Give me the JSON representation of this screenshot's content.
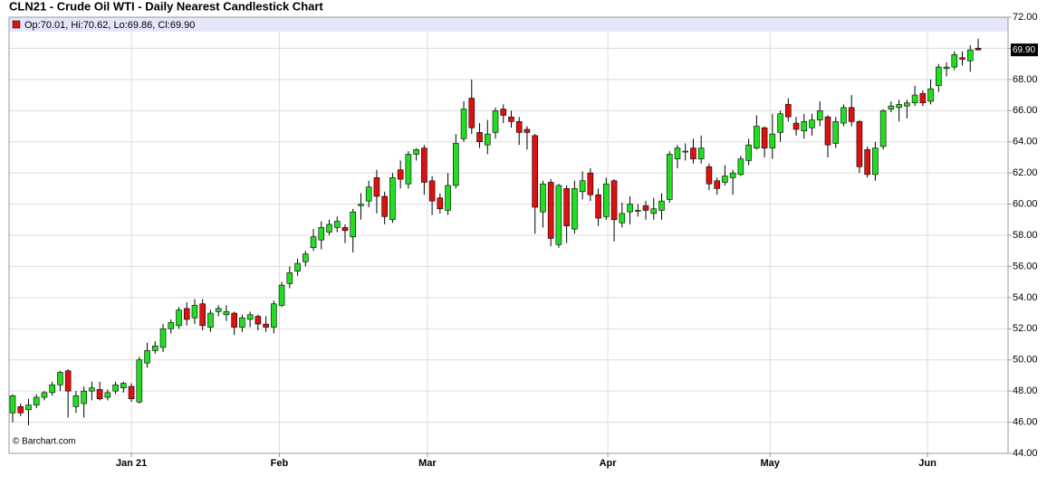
{
  "chart_data": {
    "type": "candlestick",
    "title": "CLN21 - Crude Oil WTI - Daily Nearest Candlestick Chart",
    "ohlc_label": "Op:70.01, Hi:70.62, Lo:69.86, Cl:69.90",
    "last_value_label": "69.90",
    "source": "© Barchart.com",
    "up_color": "#22dd22",
    "down_color": "#dd1111",
    "open": [
      46.6,
      47.0,
      46.8,
      47.1,
      47.6,
      47.9,
      48.4,
      49.3,
      47.0,
      47.2,
      48.0,
      48.1,
      47.6,
      48.0,
      48.2,
      48.3,
      47.3,
      49.8,
      50.6,
      50.8,
      52.0,
      52.2,
      53.3,
      52.7,
      53.6,
      52.1,
      53.1,
      52.9,
      53.0,
      52.1,
      52.6,
      52.8,
      52.3,
      52.1,
      53.5,
      54.9,
      55.7,
      56.3,
      57.2,
      57.7,
      58.2,
      58.5,
      58.5,
      57.9,
      59.9,
      60.2,
      61.7,
      60.5,
      59.0,
      62.2,
      61.3,
      63.2,
      63.6,
      61.5,
      60.4,
      59.6,
      61.2,
      64.2,
      66.8,
      64.6,
      63.8,
      64.6,
      66.1,
      65.6,
      65.3,
      64.8,
      64.4,
      59.5,
      61.4,
      57.4,
      61.0,
      58.4,
      60.8,
      62.0,
      60.6,
      59.2,
      61.5,
      58.8,
      59.5,
      59.6,
      59.9,
      59.4,
      59.6,
      60.3,
      62.9,
      63.4,
      63.6,
      62.9,
      62.4,
      61.5,
      61.4,
      61.7,
      61.9,
      62.8,
      63.6,
      64.9,
      63.6,
      64.6,
      66.4,
      65.2,
      64.7,
      64.9,
      65.4,
      65.6,
      63.9,
      65.2,
      66.2,
      65.3,
      63.5,
      61.9,
      63.7,
      66.1,
      66.2,
      66.3,
      66.5,
      67.1,
      66.6,
      67.6,
      68.7,
      68.8,
      69.4,
      69.2,
      70.01
    ],
    "high": [
      47.8,
      47.2,
      47.5,
      47.8,
      48.0,
      48.6,
      49.3,
      49.4,
      48.0,
      48.3,
      48.6,
      48.6,
      48.1,
      48.6,
      48.6,
      48.5,
      50.2,
      51.1,
      51.2,
      52.3,
      52.6,
      53.4,
      53.7,
      53.9,
      53.9,
      53.2,
      53.5,
      53.5,
      53.1,
      52.9,
      53.1,
      52.9,
      52.8,
      53.8,
      55.0,
      56.0,
      56.5,
      57.0,
      58.4,
      58.9,
      59.0,
      59.2,
      58.7,
      59.7,
      60.7,
      61.5,
      62.2,
      60.8,
      62.0,
      62.8,
      63.4,
      63.6,
      63.8,
      61.8,
      60.7,
      62.0,
      64.5,
      66.6,
      68.0,
      65.2,
      65.4,
      66.2,
      66.4,
      66.0,
      65.6,
      65.0,
      64.5,
      61.5,
      61.6,
      61.3,
      61.2,
      61.5,
      62.1,
      62.3,
      61.0,
      61.7,
      61.6,
      60.1,
      60.5,
      60.0,
      60.2,
      60.4,
      60.7,
      63.4,
      63.8,
      63.9,
      64.2,
      64.4,
      62.6,
      61.7,
      62.5,
      62.2,
      63.1,
      64.2,
      65.7,
      65.0,
      65.8,
      66.0,
      66.8,
      65.6,
      65.8,
      65.8,
      66.6,
      65.7,
      65.6,
      66.4,
      67.0,
      65.4,
      63.7,
      64.0,
      66.1,
      66.6,
      66.7,
      66.7,
      67.6,
      67.3,
      68.0,
      69.0,
      69.1,
      69.8,
      69.8,
      70.2,
      70.62
    ],
    "low": [
      46.0,
      46.4,
      45.8,
      46.9,
      47.4,
      47.7,
      48.0,
      46.3,
      46.6,
      46.3,
      47.4,
      47.4,
      47.4,
      47.8,
      47.9,
      47.3,
      47.2,
      49.5,
      50.4,
      50.5,
      51.7,
      52.0,
      52.2,
      52.3,
      51.9,
      51.8,
      52.8,
      52.5,
      51.6,
      51.8,
      52.1,
      51.9,
      51.8,
      51.7,
      53.4,
      54.6,
      55.4,
      56.0,
      57.0,
      57.1,
      58.0,
      58.2,
      57.5,
      56.9,
      59.0,
      59.8,
      59.4,
      58.7,
      58.8,
      61.0,
      61.0,
      62.8,
      60.6,
      59.3,
      59.4,
      59.3,
      61.0,
      64.0,
      64.5,
      63.6,
      63.2,
      64.2,
      65.2,
      64.9,
      63.8,
      63.5,
      58.1,
      58.5,
      57.3,
      57.2,
      57.5,
      58.1,
      60.3,
      60.2,
      58.6,
      59.0,
      57.6,
      58.5,
      58.7,
      59.2,
      59.0,
      59.0,
      59.0,
      60.1,
      62.3,
      62.8,
      62.6,
      62.6,
      60.9,
      60.6,
      61.2,
      60.6,
      61.8,
      62.5,
      63.5,
      63.0,
      62.9,
      64.0,
      65.3,
      64.4,
      64.2,
      64.4,
      65.0,
      63.0,
      63.6,
      65.0,
      65.0,
      62.0,
      61.7,
      61.5,
      63.5,
      65.9,
      65.3,
      65.5,
      66.3,
      66.3,
      66.4,
      67.2,
      68.2,
      68.6,
      68.9,
      68.5,
      69.86
    ],
    "close": [
      47.7,
      46.6,
      47.1,
      47.6,
      47.9,
      48.4,
      49.2,
      48.0,
      47.7,
      48.0,
      48.2,
      47.5,
      47.9,
      48.4,
      48.5,
      47.5,
      50.0,
      50.6,
      50.9,
      52.0,
      52.4,
      53.2,
      52.6,
      53.5,
      52.2,
      53.0,
      53.3,
      53.1,
      52.1,
      52.7,
      52.9,
      52.3,
      52.1,
      53.6,
      54.8,
      55.6,
      56.2,
      56.8,
      57.9,
      58.5,
      58.7,
      58.9,
      58.3,
      59.5,
      60.0,
      61.1,
      60.5,
      59.2,
      61.7,
      61.6,
      63.2,
      63.5,
      61.4,
      60.2,
      59.7,
      61.2,
      63.9,
      66.1,
      64.9,
      64.0,
      64.5,
      66.0,
      65.7,
      65.3,
      64.6,
      64.6,
      59.8,
      61.3,
      57.8,
      61.2,
      58.6,
      61.0,
      61.5,
      60.6,
      59.1,
      61.3,
      59.0,
      59.4,
      60.0,
      59.6,
      59.6,
      59.7,
      60.2,
      63.2,
      63.6,
      63.4,
      62.9,
      63.6,
      61.3,
      61.0,
      61.8,
      62.0,
      62.9,
      63.8,
      65.0,
      63.6,
      64.5,
      65.8,
      65.6,
      64.8,
      65.3,
      65.4,
      66.0,
      63.8,
      65.3,
      66.2,
      65.3,
      62.4,
      61.9,
      63.6,
      66.0,
      66.3,
      66.4,
      66.5,
      67.0,
      66.5,
      67.4,
      68.8,
      68.8,
      69.6,
      69.3,
      69.9,
      69.9
    ],
    "xticks": [
      {
        "value": 15.0,
        "label": "Jan 21"
      },
      {
        "value": 33.7,
        "label": "Feb"
      },
      {
        "value": 52.4,
        "label": "Mar"
      },
      {
        "value": 75.2,
        "label": "Apr"
      },
      {
        "value": 95.7,
        "label": "May"
      },
      {
        "value": 115.6,
        "label": "Jun"
      }
    ],
    "ylim": [
      44,
      72
    ],
    "yticks": [
      {
        "value": 44,
        "label": "44.00"
      },
      {
        "value": 46,
        "label": "46.00"
      },
      {
        "value": 48,
        "label": "48.00"
      },
      {
        "value": 50,
        "label": "50.00"
      },
      {
        "value": 52,
        "label": "52.00"
      },
      {
        "value": 54,
        "label": "54.00"
      },
      {
        "value": 56,
        "label": "56.00"
      },
      {
        "value": 58,
        "label": "58.00"
      },
      {
        "value": 60,
        "label": "60.00"
      },
      {
        "value": 62,
        "label": "62.00"
      },
      {
        "value": 64,
        "label": "64.00"
      },
      {
        "value": 66,
        "label": "66.00"
      },
      {
        "value": 68,
        "label": "68.00"
      },
      {
        "value": 70,
        "label": "70.00"
      },
      {
        "value": 72,
        "label": "72.00"
      }
    ],
    "grid": true
  }
}
